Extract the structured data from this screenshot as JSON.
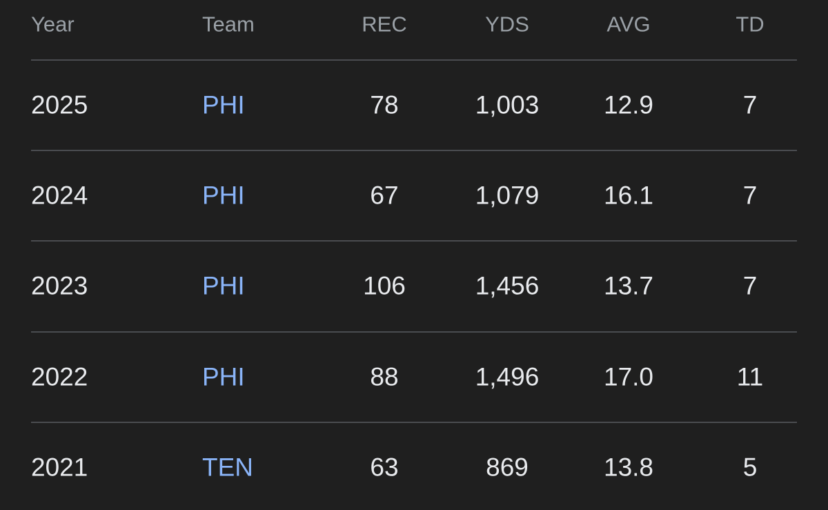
{
  "table": {
    "header": [
      "Year",
      "Team",
      "REC",
      "YDS",
      "AVG",
      "TD"
    ],
    "rows": [
      [
        "2025",
        "PHI",
        "78",
        "1,003",
        "12.9",
        "7"
      ],
      [
        "2024",
        "PHI",
        "67",
        "1,079",
        "16.1",
        "7"
      ],
      [
        "2023",
        "PHI",
        "106",
        "1,456",
        "13.7",
        "7"
      ],
      [
        "2022",
        "PHI",
        "88",
        "1,496",
        "17.0",
        "11"
      ],
      [
        "2021",
        "TEN",
        "63",
        "869",
        "13.8",
        "5"
      ]
    ]
  }
}
